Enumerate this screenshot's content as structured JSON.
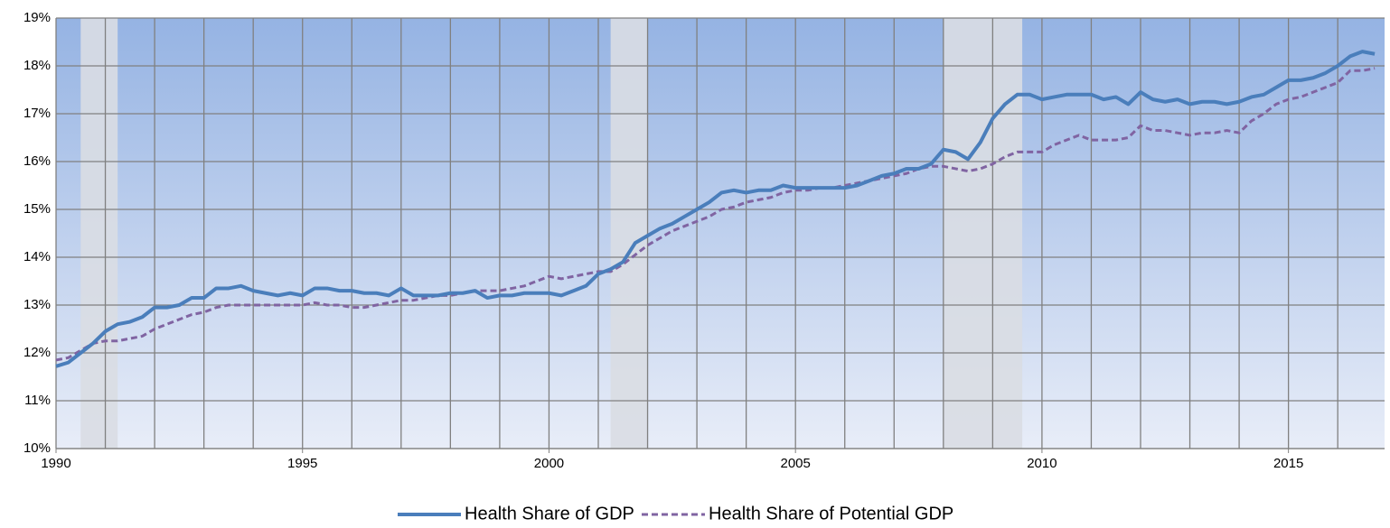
{
  "chart_data": {
    "type": "line",
    "x": [
      1990,
      1990.25,
      1990.5,
      1990.75,
      1991,
      1991.25,
      1991.5,
      1991.75,
      1992,
      1992.25,
      1992.5,
      1992.75,
      1993,
      1993.25,
      1993.5,
      1993.75,
      1994,
      1994.25,
      1994.5,
      1994.75,
      1995,
      1995.25,
      1995.5,
      1995.75,
      1996,
      1996.25,
      1996.5,
      1996.75,
      1997,
      1997.25,
      1997.5,
      1997.75,
      1998,
      1998.25,
      1998.5,
      1998.75,
      1999,
      1999.25,
      1999.5,
      1999.75,
      2000,
      2000.25,
      2000.5,
      2000.75,
      2001,
      2001.25,
      2001.5,
      2001.75,
      2002,
      2002.25,
      2002.5,
      2002.75,
      2003,
      2003.25,
      2003.5,
      2003.75,
      2004,
      2004.25,
      2004.5,
      2004.75,
      2005,
      2005.25,
      2005.5,
      2005.75,
      2006,
      2006.25,
      2006.5,
      2006.75,
      2007,
      2007.25,
      2007.5,
      2007.75,
      2008,
      2008.25,
      2008.5,
      2008.75,
      2009,
      2009.25,
      2009.5,
      2009.75,
      2010,
      2010.25,
      2010.5,
      2010.75,
      2011,
      2011.25,
      2011.5,
      2011.75,
      2012,
      2012.25,
      2012.5,
      2012.75,
      2013,
      2013.25,
      2013.5,
      2013.75,
      2014,
      2014.25,
      2014.5,
      2014.75,
      2015,
      2015.25,
      2015.5,
      2015.75,
      2016,
      2016.25,
      2016.5,
      2016.75
    ],
    "series": [
      {
        "name": "Health Share of GDP",
        "color": "#4a7ebb",
        "dash": false,
        "values": [
          11.72,
          11.8,
          12.0,
          12.2,
          12.45,
          12.6,
          12.65,
          12.75,
          12.95,
          12.95,
          13.0,
          13.15,
          13.15,
          13.35,
          13.35,
          13.4,
          13.3,
          13.25,
          13.2,
          13.25,
          13.2,
          13.35,
          13.35,
          13.3,
          13.3,
          13.25,
          13.25,
          13.2,
          13.35,
          13.2,
          13.2,
          13.2,
          13.25,
          13.25,
          13.3,
          13.15,
          13.2,
          13.2,
          13.25,
          13.25,
          13.25,
          13.2,
          13.3,
          13.4,
          13.65,
          13.75,
          13.9,
          14.3,
          14.45,
          14.6,
          14.7,
          14.85,
          15.0,
          15.15,
          15.35,
          15.4,
          15.35,
          15.4,
          15.4,
          15.5,
          15.45,
          15.45,
          15.45,
          15.45,
          15.45,
          15.5,
          15.6,
          15.7,
          15.75,
          15.85,
          15.85,
          15.95,
          16.25,
          16.2,
          16.05,
          16.4,
          16.9,
          17.2,
          17.4,
          17.4,
          17.3,
          17.35,
          17.4,
          17.4,
          17.4,
          17.3,
          17.35,
          17.2,
          17.45,
          17.3,
          17.25,
          17.3,
          17.2,
          17.25,
          17.25,
          17.2,
          17.25,
          17.35,
          17.4,
          17.55,
          17.7,
          17.7,
          17.75,
          17.85,
          18.0,
          18.2,
          18.3,
          18.25
        ]
      },
      {
        "name": "Health Share of Potential GDP",
        "color": "#8064a2",
        "dash": true,
        "values": [
          11.85,
          11.9,
          12.05,
          12.2,
          12.25,
          12.25,
          12.3,
          12.35,
          12.5,
          12.6,
          12.7,
          12.8,
          12.85,
          12.95,
          13.0,
          13.0,
          13.0,
          13.0,
          13.0,
          13.0,
          13.0,
          13.05,
          13.0,
          13.0,
          12.95,
          12.95,
          13.0,
          13.05,
          13.1,
          13.1,
          13.15,
          13.2,
          13.2,
          13.25,
          13.3,
          13.3,
          13.3,
          13.35,
          13.4,
          13.5,
          13.6,
          13.55,
          13.6,
          13.65,
          13.7,
          13.7,
          13.85,
          14.05,
          14.25,
          14.4,
          14.55,
          14.65,
          14.75,
          14.85,
          15.0,
          15.05,
          15.15,
          15.2,
          15.25,
          15.35,
          15.4,
          15.4,
          15.45,
          15.45,
          15.5,
          15.55,
          15.6,
          15.65,
          15.7,
          15.75,
          15.85,
          15.9,
          15.9,
          15.85,
          15.8,
          15.85,
          15.95,
          16.1,
          16.2,
          16.2,
          16.2,
          16.35,
          16.45,
          16.55,
          16.45,
          16.45,
          16.45,
          16.5,
          16.75,
          16.65,
          16.65,
          16.6,
          16.55,
          16.6,
          16.6,
          16.65,
          16.6,
          16.85,
          17.0,
          17.2,
          17.3,
          17.35,
          17.45,
          17.55,
          17.65,
          17.9,
          17.9,
          17.95
        ]
      }
    ],
    "recessions": [
      [
        1990.5,
        1991.25
      ],
      [
        2001.25,
        2002.0
      ],
      [
        2008.0,
        2009.6
      ]
    ],
    "xlim": [
      1990,
      2016.95
    ],
    "xticks": [
      1990,
      1995,
      2000,
      2005,
      2010,
      2015
    ],
    "x_gridlines": [
      1991,
      1992,
      1993,
      1994,
      1995,
      1996,
      1997,
      1998,
      1999,
      2000,
      2001,
      2002,
      2003,
      2004,
      2005,
      2006,
      2007,
      2008,
      2009,
      2010,
      2011,
      2012,
      2013,
      2014,
      2015,
      2016
    ],
    "ylim": [
      10,
      19
    ],
    "yticks": [
      {
        "value": 10,
        "label": "10%"
      },
      {
        "value": 11,
        "label": "11%"
      },
      {
        "value": 12,
        "label": "12%"
      },
      {
        "value": 13,
        "label": "13%"
      },
      {
        "value": 14,
        "label": "14%"
      },
      {
        "value": 15,
        "label": "15%"
      },
      {
        "value": 16,
        "label": "16%"
      },
      {
        "value": 17,
        "label": "17%"
      },
      {
        "value": 18,
        "label": "18%"
      },
      {
        "value": 19,
        "label": "19%"
      }
    ],
    "grid": true,
    "legend": "bottom"
  }
}
